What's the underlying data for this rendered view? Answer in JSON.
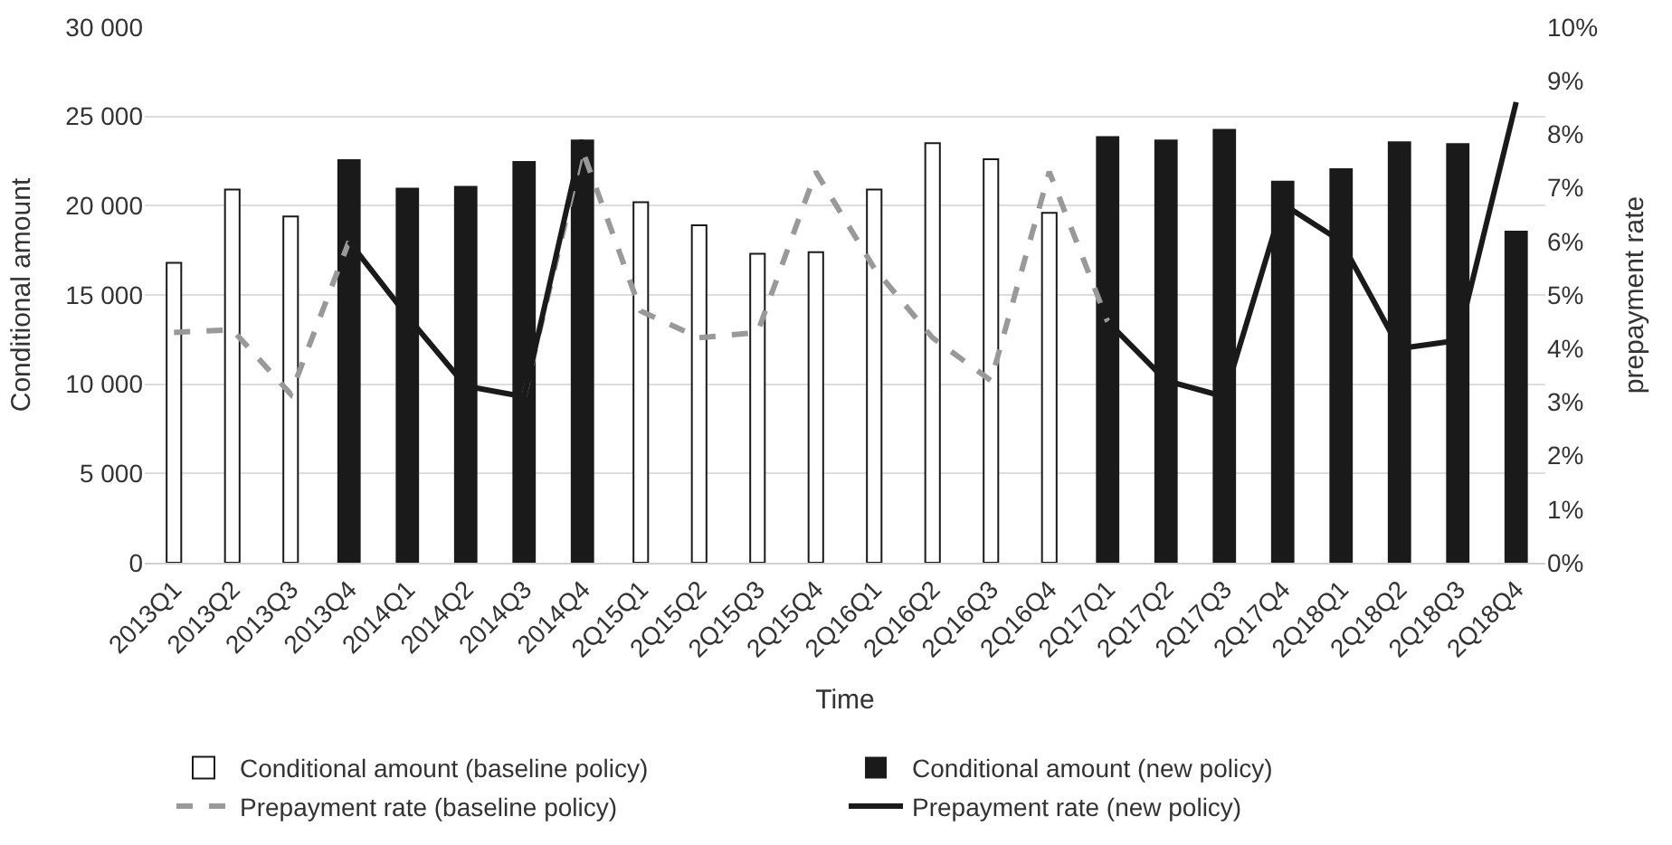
{
  "chart_data": {
    "type": "bar",
    "xlabel": "Time",
    "ylabel": "Conditional amount",
    "y2label": "prepayment rate",
    "categories": [
      "2013Q1",
      "2013Q2",
      "2013Q3",
      "2013Q4",
      "2014Q1",
      "2014Q2",
      "2014Q3",
      "2014Q4",
      "2Q15Q1",
      "2Q15Q2",
      "2Q15Q3",
      "2Q15Q4",
      "2Q16Q1",
      "2Q16Q2",
      "2Q16Q3",
      "2Q16Q4",
      "2Q17Q1",
      "2Q17Q2",
      "2Q17Q3",
      "2Q17Q4",
      "2Q18Q1",
      "2Q18Q2",
      "2Q18Q3",
      "2Q18Q4"
    ],
    "series": [
      {
        "name": "Conditional amount (baseline policy)",
        "color": "#ffffff",
        "values": [
          16800,
          20900,
          19400,
          null,
          null,
          null,
          null,
          null,
          20200,
          18900,
          17300,
          17400,
          20900,
          23500,
          22600,
          19600,
          null,
          null,
          null,
          null,
          null,
          null,
          null,
          null
        ]
      },
      {
        "name": "Conditional amount (new policy)",
        "color": "#1a1a1a",
        "values": [
          null,
          null,
          null,
          22600,
          21000,
          21100,
          22500,
          23700,
          null,
          null,
          null,
          null,
          null,
          null,
          null,
          null,
          23900,
          23700,
          24300,
          21400,
          22100,
          23600,
          23500,
          18600
        ]
      },
      {
        "name": "Prepayment rate (baseline policy)",
        "type": "line",
        "axis": "y2",
        "color": "#999999",
        "line_style": "dashed",
        "values": [
          4.3,
          4.35,
          3.15,
          6.0,
          null,
          null,
          3.1,
          7.7,
          4.7,
          4.2,
          4.3,
          7.3,
          5.5,
          4.2,
          3.4,
          7.3,
          4.5,
          null,
          null,
          null,
          null,
          null,
          null,
          null
        ]
      },
      {
        "name": "Prepayment rate (new policy)",
        "type": "line",
        "axis": "y2",
        "color": "#1a1a1a",
        "line_style": "solid",
        "values": [
          null,
          null,
          null,
          6.0,
          4.6,
          3.3,
          3.1,
          7.9,
          null,
          null,
          null,
          null,
          null,
          null,
          null,
          null,
          4.5,
          3.4,
          3.1,
          6.7,
          6.0,
          4.0,
          4.15,
          8.6
        ]
      }
    ],
    "ylim": [
      0,
      30000
    ],
    "yticks": [
      {
        "value": 0,
        "label": "0"
      },
      {
        "value": 5000,
        "label": "5 000"
      },
      {
        "value": 10000,
        "label": "10 000"
      },
      {
        "value": 15000,
        "label": "15 000"
      },
      {
        "value": 20000,
        "label": "20 000"
      },
      {
        "value": 25000,
        "label": "25 000"
      },
      {
        "value": 30000,
        "label": "30 000"
      }
    ],
    "y2lim": [
      0,
      10
    ],
    "y2ticks": [
      {
        "value": 0,
        "label": "0%"
      },
      {
        "value": 1,
        "label": "1%"
      },
      {
        "value": 2,
        "label": "2%"
      },
      {
        "value": 3,
        "label": "3%"
      },
      {
        "value": 4,
        "label": "4%"
      },
      {
        "value": 5,
        "label": "5%"
      },
      {
        "value": 6,
        "label": "6%"
      },
      {
        "value": 7,
        "label": "7%"
      },
      {
        "value": 8,
        "label": "8%"
      },
      {
        "value": 9,
        "label": "9%"
      },
      {
        "value": 10,
        "label": "10%"
      }
    ],
    "grid": "y",
    "legend": "bottom",
    "marker": "none"
  }
}
